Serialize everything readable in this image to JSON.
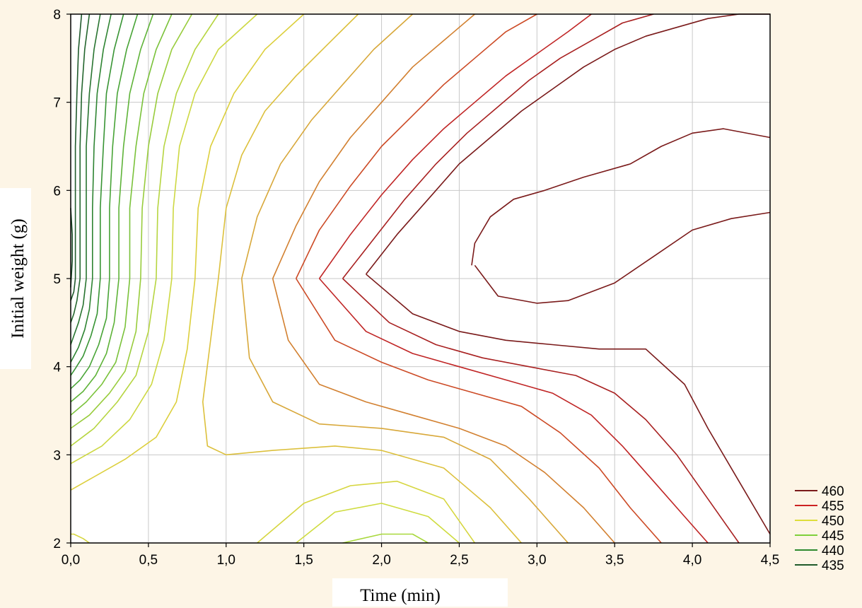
{
  "chart_data": {
    "type": "contour",
    "title": "",
    "xlabel": "Time (min)",
    "ylabel": "Initial weight (g)",
    "xlim": [
      0.0,
      4.5
    ],
    "ylim": [
      2,
      8
    ],
    "x_ticks": [
      "0,0",
      "0,5",
      "1,0",
      "1,5",
      "2,0",
      "2,5",
      "3,0",
      "3,5",
      "4,0",
      "4,5"
    ],
    "y_ticks": [
      "2",
      "3",
      "4",
      "5",
      "6",
      "7",
      "8"
    ],
    "grid": true,
    "legend_position": "bottom-right",
    "legend": [
      {
        "label": "460",
        "color": "#7a1a1a"
      },
      {
        "label": "455",
        "color": "#cc2222"
      },
      {
        "label": "450",
        "color": "#dede3a"
      },
      {
        "label": "445",
        "color": "#7ed03a"
      },
      {
        "label": "440",
        "color": "#2e8a2e"
      },
      {
        "label": "435",
        "color": "#1f5a2a"
      }
    ],
    "series": [
      {
        "level": 461,
        "color": "#7a1a1a",
        "x": [
          2.58,
          2.6,
          2.7,
          2.85,
          3.05,
          3.3,
          3.6,
          3.8,
          4.0,
          4.2,
          4.5
        ],
        "y": [
          5.15,
          5.4,
          5.7,
          5.9,
          6.0,
          6.15,
          6.3,
          6.5,
          6.65,
          6.7,
          6.6
        ]
      },
      {
        "level": 461,
        "color": "#7a1a1a",
        "x": [
          2.6,
          2.75,
          3.0,
          3.2,
          3.5,
          3.75,
          4.0,
          4.25,
          4.5
        ],
        "y": [
          5.15,
          4.8,
          4.72,
          4.75,
          4.95,
          5.25,
          5.55,
          5.68,
          5.75
        ]
      },
      {
        "level": 460,
        "color": "#7a1a1a",
        "x": [
          1.9,
          2.1,
          2.3,
          2.5,
          2.7,
          2.9,
          3.1,
          3.3,
          3.5,
          3.7,
          3.9,
          4.1,
          4.3,
          4.5
        ],
        "y": [
          5.05,
          5.5,
          5.9,
          6.3,
          6.6,
          6.9,
          7.15,
          7.4,
          7.6,
          7.75,
          7.85,
          7.95,
          8.0,
          8.0
        ]
      },
      {
        "level": 460,
        "color": "#7a1a1a",
        "x": [
          1.9,
          2.2,
          2.5,
          2.8,
          3.1,
          3.4,
          3.7,
          3.95,
          4.1,
          4.3,
          4.5
        ],
        "y": [
          5.05,
          4.6,
          4.4,
          4.3,
          4.25,
          4.2,
          4.2,
          3.8,
          3.3,
          2.7,
          2.1
        ]
      },
      {
        "level": 458,
        "color": "#a82020",
        "x": [
          1.75,
          1.95,
          2.15,
          2.35,
          2.55,
          2.75,
          2.95,
          3.15,
          3.35,
          3.55,
          3.75
        ],
        "y": [
          5.0,
          5.45,
          5.9,
          6.3,
          6.65,
          6.95,
          7.25,
          7.5,
          7.7,
          7.9,
          8.0
        ]
      },
      {
        "level": 458,
        "color": "#a82020",
        "x": [
          1.75,
          2.05,
          2.35,
          2.65,
          2.95,
          3.25,
          3.5,
          3.7,
          3.9,
          4.1,
          4.3
        ],
        "y": [
          5.0,
          4.5,
          4.25,
          4.1,
          4.0,
          3.9,
          3.7,
          3.4,
          3.0,
          2.5,
          2.0
        ]
      },
      {
        "level": 456,
        "color": "#c02525",
        "x": [
          1.6,
          1.8,
          2.0,
          2.2,
          2.4,
          2.6,
          2.8,
          3.0,
          3.2,
          3.35
        ],
        "y": [
          5.0,
          5.5,
          5.95,
          6.35,
          6.7,
          7.0,
          7.3,
          7.55,
          7.8,
          8.0
        ]
      },
      {
        "level": 456,
        "color": "#c02525",
        "x": [
          1.6,
          1.9,
          2.2,
          2.5,
          2.8,
          3.1,
          3.35,
          3.55,
          3.75,
          3.95,
          4.1
        ],
        "y": [
          5.0,
          4.4,
          4.15,
          4.0,
          3.85,
          3.7,
          3.45,
          3.1,
          2.7,
          2.3,
          2.0
        ]
      },
      {
        "level": 454,
        "color": "#cc4a25",
        "x": [
          1.45,
          1.6,
          1.8,
          2.0,
          2.2,
          2.4,
          2.6,
          2.8,
          3.0
        ],
        "y": [
          5.0,
          5.55,
          6.05,
          6.5,
          6.85,
          7.2,
          7.5,
          7.8,
          8.0
        ]
      },
      {
        "level": 454,
        "color": "#cc4a25",
        "x": [
          1.45,
          1.7,
          2.0,
          2.3,
          2.6,
          2.9,
          3.15,
          3.4,
          3.6,
          3.8
        ],
        "y": [
          5.0,
          4.3,
          4.05,
          3.85,
          3.7,
          3.55,
          3.25,
          2.85,
          2.4,
          2.0
        ]
      },
      {
        "level": 452,
        "color": "#d28030",
        "x": [
          1.3,
          1.45,
          1.6,
          1.8,
          2.0,
          2.2,
          2.4,
          2.6
        ],
        "y": [
          5.0,
          5.6,
          6.1,
          6.6,
          7.0,
          7.4,
          7.7,
          8.0
        ]
      },
      {
        "level": 452,
        "color": "#d28030",
        "x": [
          1.3,
          1.4,
          1.6,
          1.9,
          2.2,
          2.5,
          2.8,
          3.05,
          3.3,
          3.5
        ],
        "y": [
          5.0,
          4.3,
          3.8,
          3.6,
          3.45,
          3.3,
          3.1,
          2.8,
          2.4,
          2.0
        ]
      },
      {
        "level": 450,
        "color": "#d8a83a",
        "x": [
          1.1,
          1.2,
          1.35,
          1.55,
          1.75,
          1.95,
          2.2
        ],
        "y": [
          5.0,
          5.7,
          6.3,
          6.8,
          7.2,
          7.6,
          8.0
        ]
      },
      {
        "level": 450,
        "color": "#d8a83a",
        "x": [
          1.1,
          1.15,
          1.3,
          1.6,
          2.0,
          2.4,
          2.7,
          2.95,
          3.2
        ],
        "y": [
          5.0,
          4.1,
          3.6,
          3.35,
          3.3,
          3.2,
          2.95,
          2.5,
          2.0
        ]
      },
      {
        "level": 449,
        "color": "#dcc03c",
        "x": [
          0.95,
          1.0,
          1.1,
          1.25,
          1.45,
          1.65,
          1.85
        ],
        "y": [
          5.0,
          5.8,
          6.4,
          6.9,
          7.3,
          7.65,
          8.0
        ]
      },
      {
        "level": 449,
        "color": "#dcc03c",
        "x": [
          0.95,
          0.9,
          0.85,
          0.88,
          1.0,
          1.3,
          1.7,
          2.0,
          2.4,
          2.7,
          2.9
        ],
        "y": [
          5.0,
          4.3,
          3.6,
          3.1,
          3.0,
          3.05,
          3.1,
          3.05,
          2.85,
          2.4,
          2.0
        ]
      },
      {
        "level": 448,
        "color": "#dccf3c",
        "x": [
          0.8,
          0.82,
          0.9,
          1.05,
          1.25,
          1.5
        ],
        "y": [
          5.0,
          5.8,
          6.5,
          7.1,
          7.6,
          8.0
        ]
      },
      {
        "level": 448,
        "color": "#dccf3c",
        "x": [
          0.8,
          0.75,
          0.68,
          0.55,
          0.35,
          0.1,
          0.0
        ],
        "y": [
          5.0,
          4.2,
          3.6,
          3.2,
          2.95,
          2.7,
          2.6
        ]
      },
      {
        "level": 447,
        "color": "#d6d640",
        "x": [
          0.0,
          0.02,
          0.08,
          0.12
        ],
        "y": [
          2.1,
          2.1,
          2.05,
          2.0
        ]
      },
      {
        "level": 447,
        "color": "#d6d640",
        "x": [
          1.2,
          1.5,
          1.8,
          2.1,
          2.4,
          2.6
        ],
        "y": [
          2.0,
          2.45,
          2.65,
          2.7,
          2.5,
          2.0
        ]
      },
      {
        "level": 446,
        "color": "#cfdc40",
        "x": [
          1.45,
          1.7,
          2.0,
          2.3,
          2.5
        ],
        "y": [
          2.0,
          2.35,
          2.45,
          2.3,
          2.0
        ]
      },
      {
        "level": 445,
        "color": "#a8d83c",
        "x": [
          1.75,
          2.0,
          2.2,
          2.3
        ],
        "y": [
          2.0,
          2.1,
          2.1,
          2.0
        ]
      },
      {
        "level": 447,
        "color": "#cdd842",
        "x": [
          0.65,
          0.66,
          0.7,
          0.8,
          0.95,
          1.2
        ],
        "y": [
          5.0,
          5.8,
          6.5,
          7.1,
          7.6,
          8.0
        ]
      },
      {
        "level": 447,
        "color": "#cdd842",
        "x": [
          0.65,
          0.6,
          0.52,
          0.38,
          0.2,
          0.0
        ],
        "y": [
          5.0,
          4.3,
          3.8,
          3.4,
          3.1,
          2.9
        ]
      },
      {
        "level": 446,
        "color": "#b6d540",
        "x": [
          0.55,
          0.56,
          0.6,
          0.68,
          0.8,
          0.95
        ],
        "y": [
          5.0,
          5.8,
          6.5,
          7.1,
          7.6,
          8.0
        ]
      },
      {
        "level": 446,
        "color": "#b6d540",
        "x": [
          0.55,
          0.5,
          0.42,
          0.3,
          0.15,
          0.0
        ],
        "y": [
          5.0,
          4.4,
          3.9,
          3.6,
          3.3,
          3.1
        ]
      },
      {
        "level": 445,
        "color": "#98cc3c",
        "x": [
          0.45,
          0.46,
          0.5,
          0.56,
          0.65,
          0.78
        ],
        "y": [
          5.0,
          5.8,
          6.5,
          7.1,
          7.6,
          8.0
        ]
      },
      {
        "level": 445,
        "color": "#98cc3c",
        "x": [
          0.45,
          0.42,
          0.35,
          0.25,
          0.12,
          0.0
        ],
        "y": [
          5.0,
          4.4,
          3.95,
          3.7,
          3.45,
          3.3
        ]
      },
      {
        "level": 444,
        "color": "#7ac23a",
        "x": [
          0.38,
          0.38,
          0.42,
          0.47,
          0.55,
          0.65
        ],
        "y": [
          5.0,
          5.8,
          6.5,
          7.1,
          7.6,
          8.0
        ]
      },
      {
        "level": 444,
        "color": "#7ac23a",
        "x": [
          0.38,
          0.35,
          0.29,
          0.2,
          0.1,
          0.0
        ],
        "y": [
          5.0,
          4.45,
          4.05,
          3.8,
          3.6,
          3.45
        ]
      },
      {
        "level": 443,
        "color": "#5eb338",
        "x": [
          0.31,
          0.31,
          0.34,
          0.38,
          0.45,
          0.53
        ],
        "y": [
          5.0,
          5.8,
          6.5,
          7.1,
          7.6,
          8.0
        ]
      },
      {
        "level": 443,
        "color": "#5eb338",
        "x": [
          0.31,
          0.28,
          0.23,
          0.16,
          0.08,
          0.0
        ],
        "y": [
          5.0,
          4.5,
          4.15,
          3.9,
          3.72,
          3.6
        ]
      },
      {
        "level": 442,
        "color": "#48a436",
        "x": [
          0.25,
          0.25,
          0.27,
          0.3,
          0.36,
          0.43
        ],
        "y": [
          5.0,
          5.8,
          6.5,
          7.1,
          7.6,
          8.0
        ]
      },
      {
        "level": 442,
        "color": "#48a436",
        "x": [
          0.25,
          0.23,
          0.18,
          0.12,
          0.06,
          0.0
        ],
        "y": [
          5.0,
          4.55,
          4.25,
          4.0,
          3.85,
          3.75
        ]
      },
      {
        "level": 441,
        "color": "#389434",
        "x": [
          0.19,
          0.19,
          0.21,
          0.23,
          0.28,
          0.34
        ],
        "y": [
          5.0,
          5.8,
          6.5,
          7.1,
          7.6,
          8.0
        ]
      },
      {
        "level": 441,
        "color": "#389434",
        "x": [
          0.19,
          0.17,
          0.13,
          0.08,
          0.03,
          0.0
        ],
        "y": [
          5.0,
          4.6,
          4.35,
          4.12,
          3.98,
          3.9
        ]
      },
      {
        "level": 440,
        "color": "#2e8432",
        "x": [
          0.14,
          0.14,
          0.15,
          0.17,
          0.21,
          0.26
        ],
        "y": [
          5.0,
          5.8,
          6.5,
          7.1,
          7.6,
          8.0
        ]
      },
      {
        "level": 440,
        "color": "#2e8432",
        "x": [
          0.14,
          0.12,
          0.09,
          0.05,
          0.0
        ],
        "y": [
          5.0,
          4.65,
          4.42,
          4.22,
          4.05
        ]
      },
      {
        "level": 439,
        "color": "#287430",
        "x": [
          0.1,
          0.1,
          0.1,
          0.12,
          0.15,
          0.19
        ],
        "y": [
          5.0,
          5.8,
          6.5,
          7.1,
          7.6,
          8.0
        ]
      },
      {
        "level": 439,
        "color": "#287430",
        "x": [
          0.1,
          0.08,
          0.05,
          0.02,
          0.0
        ],
        "y": [
          5.0,
          4.7,
          4.5,
          4.35,
          4.25
        ]
      },
      {
        "level": 438,
        "color": "#24662e",
        "x": [
          0.06,
          0.06,
          0.06,
          0.07,
          0.09,
          0.12
        ],
        "y": [
          5.0,
          5.8,
          6.5,
          7.1,
          7.6,
          8.0
        ]
      },
      {
        "level": 438,
        "color": "#24662e",
        "x": [
          0.06,
          0.04,
          0.02,
          0.0
        ],
        "y": [
          5.0,
          4.75,
          4.6,
          4.5
        ]
      },
      {
        "level": 437,
        "color": "#205a2c",
        "x": [
          0.03,
          0.03,
          0.03,
          0.04,
          0.05,
          0.07
        ],
        "y": [
          5.0,
          5.8,
          6.5,
          7.1,
          7.6,
          8.0
        ]
      },
      {
        "level": 437,
        "color": "#205a2c",
        "x": [
          0.03,
          0.02,
          0.0
        ],
        "y": [
          5.0,
          4.85,
          4.75
        ]
      },
      {
        "level": 436,
        "color": "#1c4e2a",
        "x": [
          0.0,
          0.01,
          0.01,
          0.0
        ],
        "y": [
          4.9,
          5.2,
          5.5,
          5.8
        ]
      }
    ]
  }
}
